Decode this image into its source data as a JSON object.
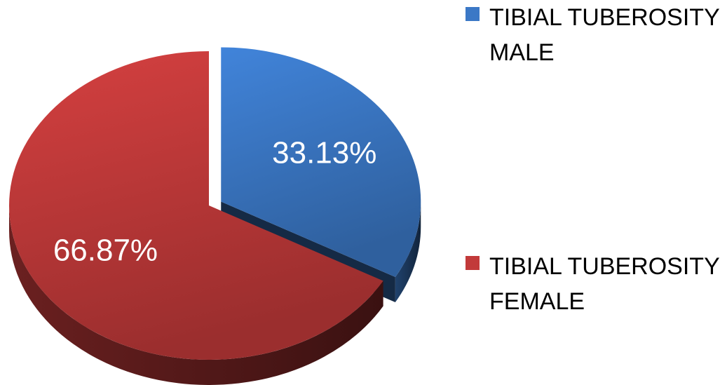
{
  "chart_data": {
    "type": "pie",
    "categories": [
      "TIBIAL TUBEROSITY MALE",
      "TIBIAL TUBEROSITY FEMALE"
    ],
    "values": [
      33.13,
      66.87
    ],
    "value_labels": [
      "33.13%",
      "66.87%"
    ],
    "colors": [
      "#3b78c6",
      "#c23a3a"
    ],
    "legend": "right"
  }
}
